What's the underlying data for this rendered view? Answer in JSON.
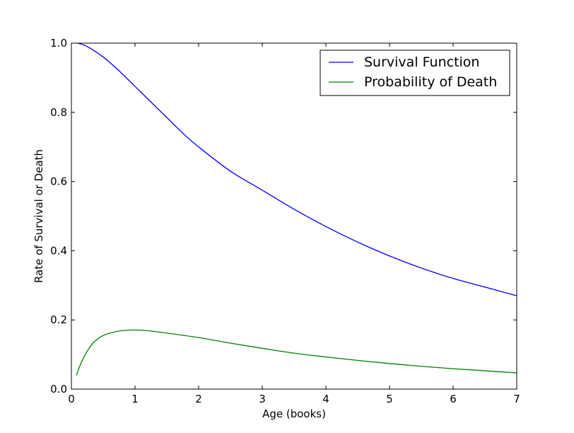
{
  "chart_data": {
    "type": "line",
    "xlabel": "Age (books)",
    "ylabel": "Rate of Survival or Death",
    "xlim": [
      0,
      7
    ],
    "ylim": [
      0.0,
      1.0
    ],
    "xticks": [
      0,
      1,
      2,
      3,
      4,
      5,
      6,
      7
    ],
    "xtick_labels": [
      "0",
      "1",
      "2",
      "3",
      "4",
      "5",
      "6",
      "7"
    ],
    "yticks": [
      0.0,
      0.2,
      0.4,
      0.6,
      0.8,
      1.0
    ],
    "ytick_labels": [
      "0.0",
      "0.2",
      "0.4",
      "0.6",
      "0.8",
      "1.0"
    ],
    "grid": false,
    "legend_position": "top-right",
    "series": [
      {
        "name": "Survival Function",
        "color": "#0000ff",
        "x": [
          0.1,
          0.25,
          0.5,
          0.75,
          1.0,
          1.25,
          1.5,
          1.75,
          2.0,
          2.5,
          3.0,
          3.5,
          4.0,
          4.5,
          5.0,
          5.5,
          6.0,
          6.5,
          7.0
        ],
        "y": [
          1.0,
          0.99,
          0.96,
          0.92,
          0.875,
          0.83,
          0.785,
          0.74,
          0.7,
          0.63,
          0.575,
          0.52,
          0.47,
          0.425,
          0.385,
          0.35,
          0.32,
          0.295,
          0.27
        ]
      },
      {
        "name": "Probability of Death",
        "color": "#008000",
        "x": [
          0.08,
          0.15,
          0.25,
          0.35,
          0.5,
          0.75,
          1.0,
          1.25,
          1.5,
          2.0,
          2.5,
          3.0,
          3.5,
          4.0,
          4.5,
          5.0,
          5.5,
          6.0,
          6.5,
          7.0
        ],
        "y": [
          0.04,
          0.075,
          0.11,
          0.135,
          0.155,
          0.168,
          0.171,
          0.168,
          0.162,
          0.149,
          0.133,
          0.118,
          0.104,
          0.093,
          0.083,
          0.074,
          0.066,
          0.059,
          0.053,
          0.047
        ]
      }
    ]
  }
}
